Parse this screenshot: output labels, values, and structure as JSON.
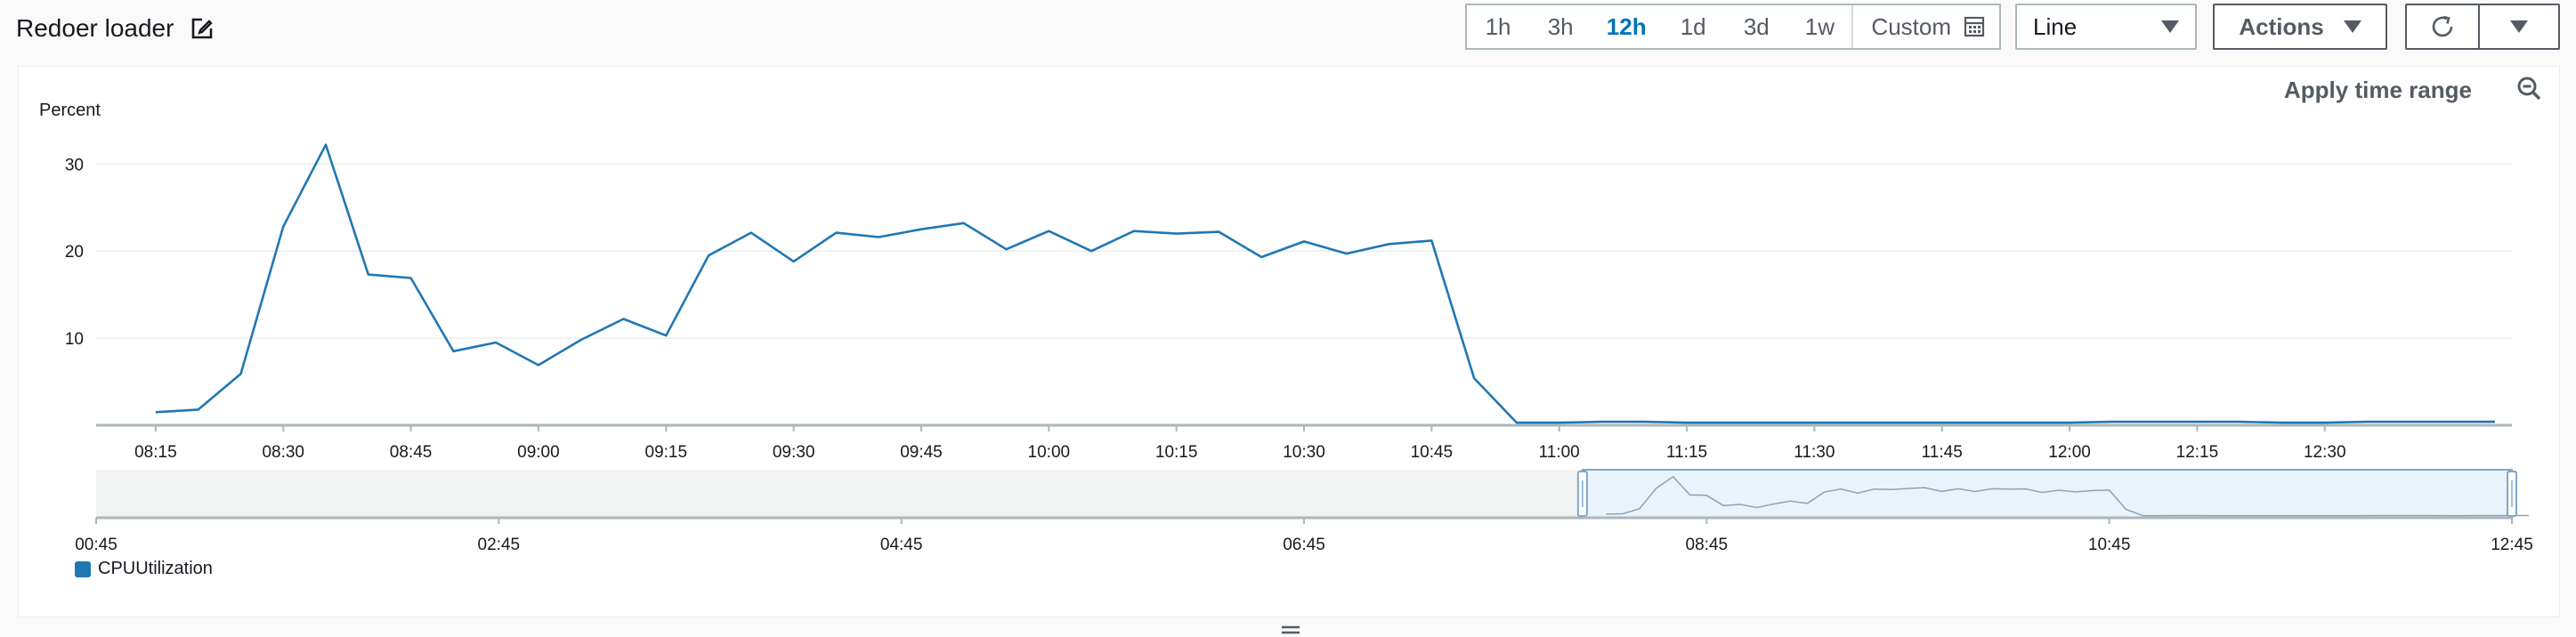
{
  "widget": {
    "title": "Redoer loader"
  },
  "time_range": {
    "options": [
      "1h",
      "3h",
      "12h",
      "1d",
      "3d",
      "1w"
    ],
    "active": "12h",
    "custom_label": "Custom"
  },
  "view_select": {
    "value": "Line"
  },
  "actions": {
    "label": "Actions"
  },
  "apply_time_range": "Apply time range",
  "colors": {
    "series": "#1f77b4",
    "active": "#0073bb",
    "grid": "#eaeded"
  },
  "chart_data": {
    "type": "line",
    "ylabel": "Percent",
    "yticks": [
      10,
      20,
      30
    ],
    "ylim": [
      0,
      33.5
    ],
    "grid": true,
    "legend_position": "bottom-left",
    "x_ticks": [
      "08:15",
      "08:30",
      "08:45",
      "09:00",
      "09:15",
      "09:30",
      "09:45",
      "10:00",
      "10:15",
      "10:30",
      "10:45",
      "11:00",
      "11:15",
      "11:30",
      "11:45",
      "12:00",
      "12:15",
      "12:30"
    ],
    "x_range": [
      "08:08",
      "12:52"
    ],
    "series": [
      {
        "name": "CPUUtilization",
        "x": [
          "08:15",
          "08:20",
          "08:25",
          "08:30",
          "08:35",
          "08:40",
          "08:45",
          "08:50",
          "08:55",
          "09:00",
          "09:05",
          "09:10",
          "09:15",
          "09:20",
          "09:25",
          "09:30",
          "09:35",
          "09:40",
          "09:45",
          "09:50",
          "09:55",
          "10:00",
          "10:05",
          "10:10",
          "10:15",
          "10:20",
          "10:25",
          "10:30",
          "10:35",
          "10:40",
          "10:45",
          "10:50",
          "10:55",
          "11:00",
          "11:05",
          "11:10",
          "11:15",
          "11:20",
          "11:25",
          "11:30",
          "11:35",
          "11:40",
          "11:45",
          "11:50",
          "11:55",
          "12:00",
          "12:05",
          "12:10",
          "12:15",
          "12:20",
          "12:25",
          "12:30",
          "12:35",
          "12:40",
          "12:45",
          "12:50"
        ],
        "values": [
          1.5,
          1.8,
          5.9,
          22.8,
          32.2,
          17.3,
          16.9,
          8.5,
          9.5,
          6.9,
          9.8,
          12.2,
          10.3,
          19.5,
          22.1,
          18.8,
          22.1,
          21.6,
          22.5,
          23.2,
          20.2,
          22.3,
          20.0,
          22.3,
          22.0,
          22.2,
          19.3,
          21.1,
          19.7,
          20.8,
          21.2,
          5.4,
          0.3,
          0.3,
          0.4,
          0.4,
          0.3,
          0.3,
          0.3,
          0.3,
          0.3,
          0.3,
          0.3,
          0.3,
          0.3,
          0.3,
          0.4,
          0.4,
          0.4,
          0.4,
          0.3,
          0.3,
          0.4,
          0.4,
          0.4,
          0.4
        ]
      }
    ],
    "overview": {
      "x_ticks": [
        "00:45",
        "02:45",
        "04:45",
        "06:45",
        "08:45",
        "10:45",
        "12:45"
      ],
      "x_range": [
        "00:45",
        "12:45"
      ],
      "selection": [
        "08:08",
        "12:52"
      ]
    }
  }
}
